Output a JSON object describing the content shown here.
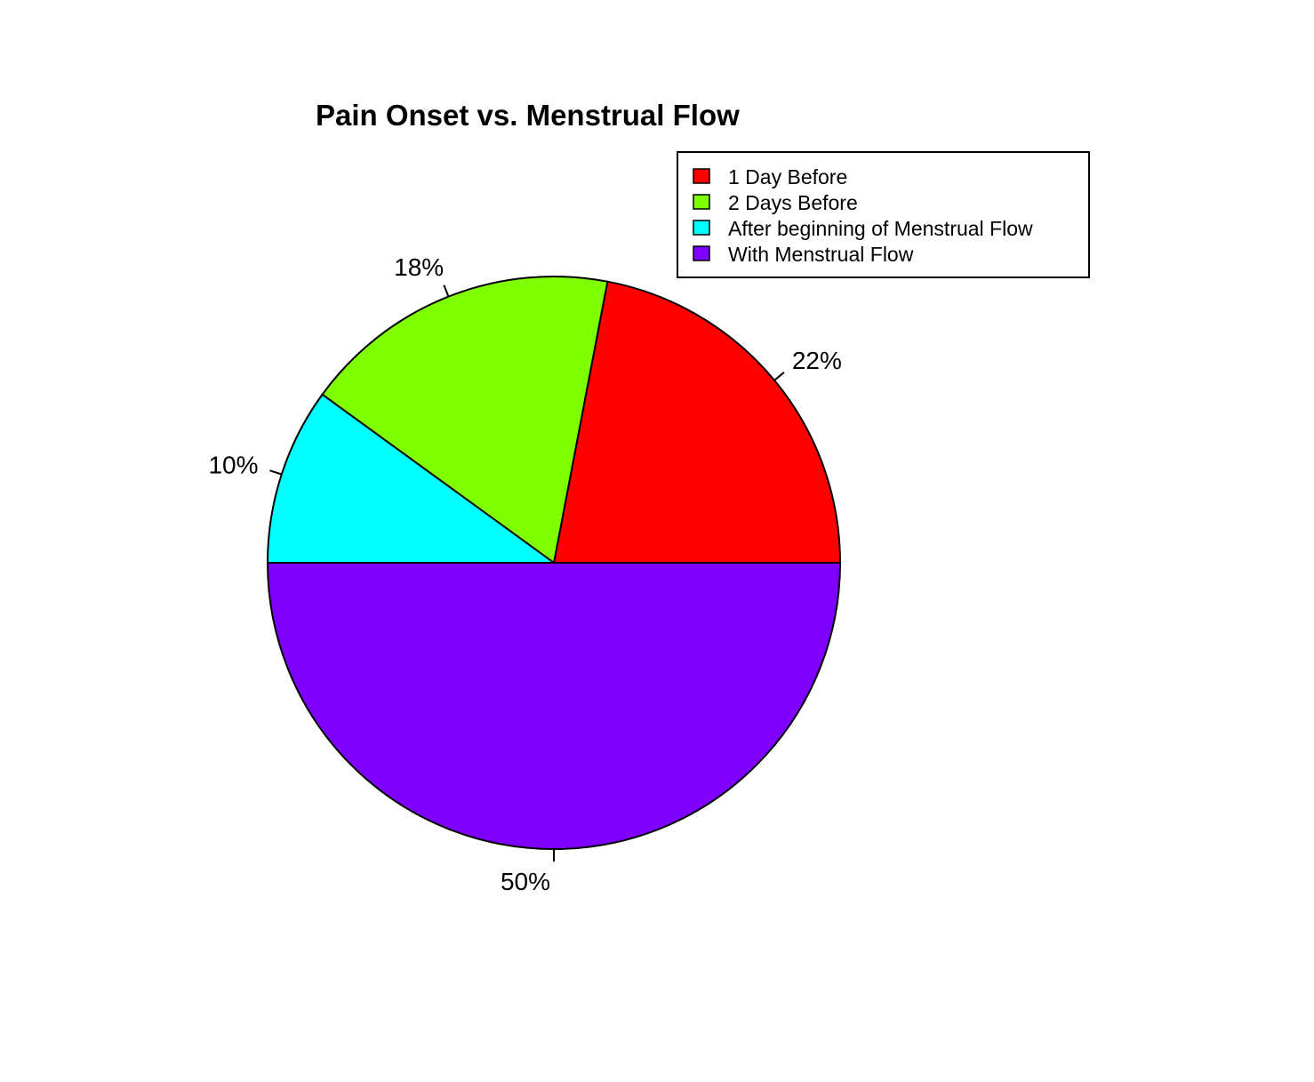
{
  "chart_data": {
    "type": "pie",
    "title": "Pain Onset vs. Menstrual Flow",
    "categories": [
      "1 Day Before",
      "2 Days Before",
      "After beginning of Menstrual Flow",
      "With Menstrual Flow"
    ],
    "values": [
      22,
      18,
      10,
      50
    ],
    "labels": [
      "22%",
      "18%",
      "10%",
      "50%"
    ],
    "colors": [
      "#FF0000",
      "#80FF00",
      "#00FFFF",
      "#8000FF"
    ],
    "direction": "counterclockwise",
    "start_angle": "3 o'clock",
    "legend": {
      "position": "top-right",
      "entries": [
        "1 Day Before",
        "2 Days Before",
        "After beginning of Menstrual Flow",
        "With Menstrual Flow"
      ]
    }
  }
}
